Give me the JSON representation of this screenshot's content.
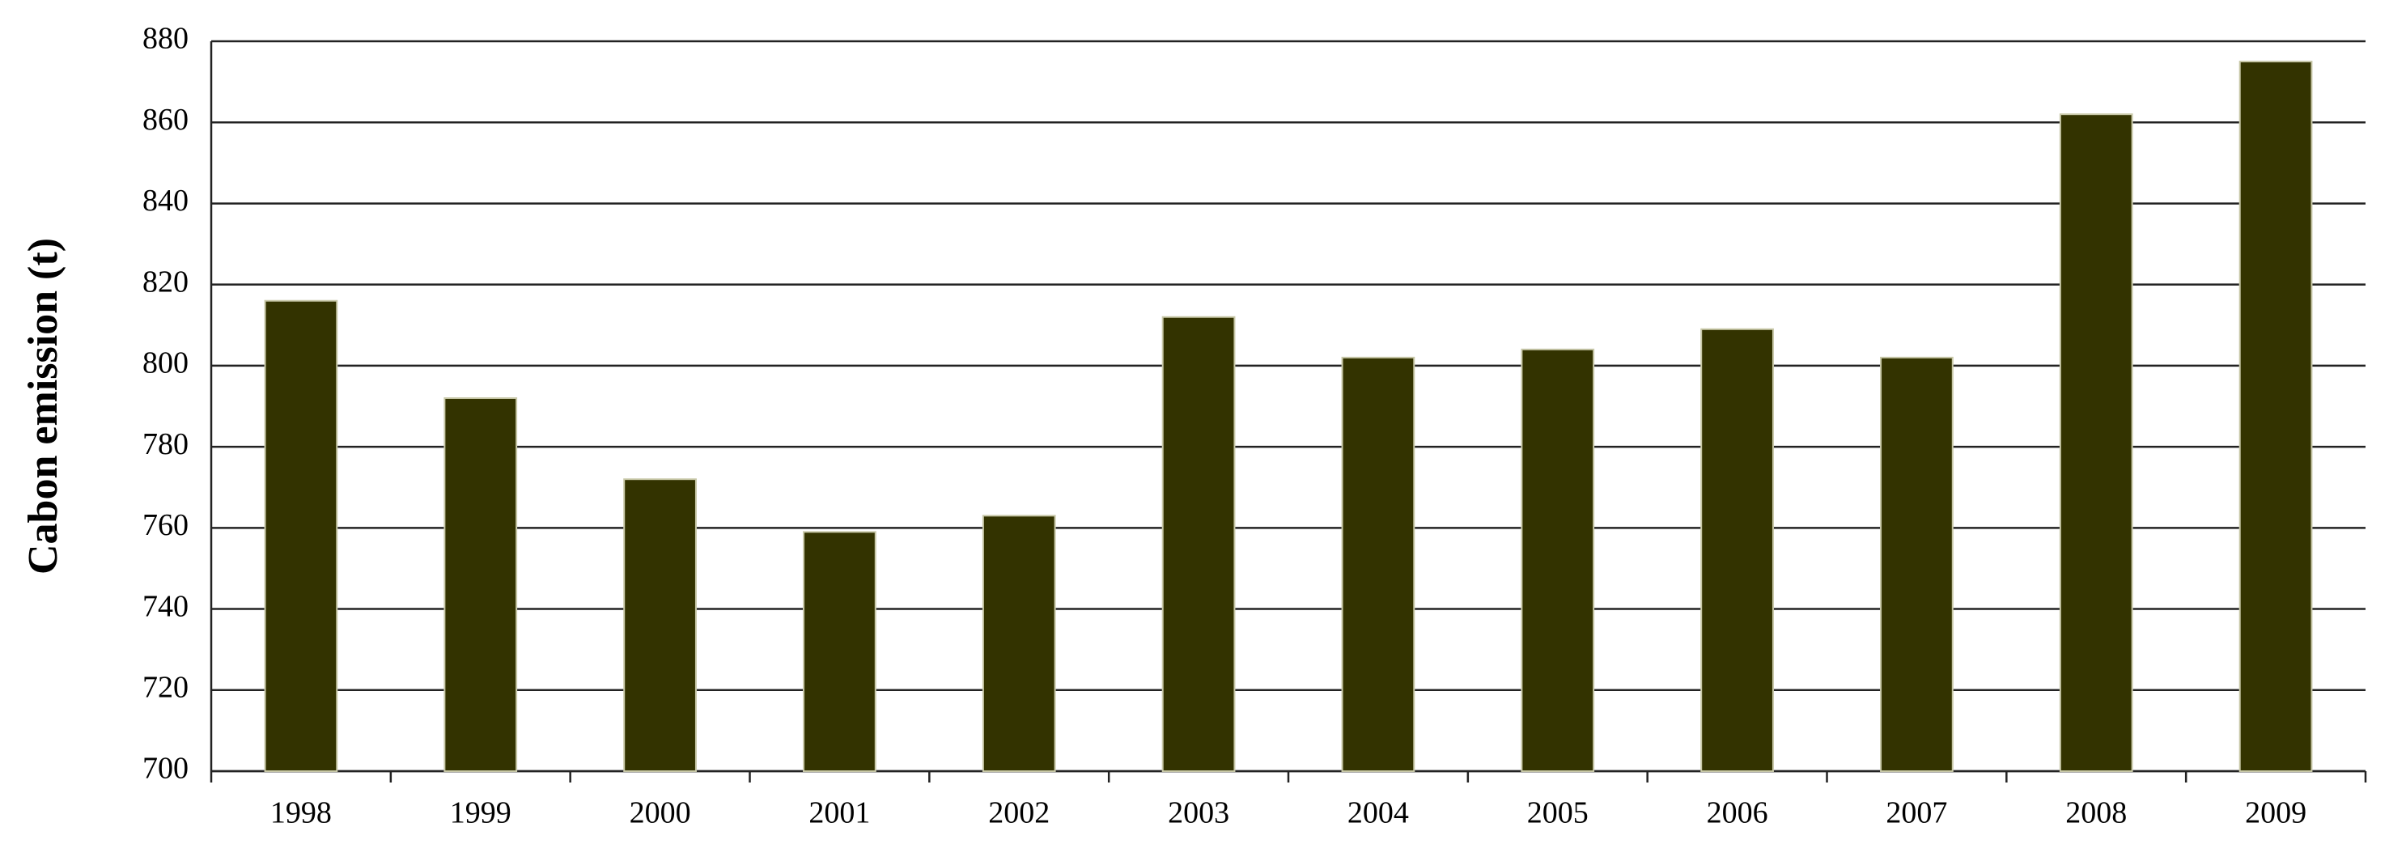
{
  "chart_data": {
    "type": "bar",
    "y_label": "Cabon emission (t)",
    "categories": [
      "1998",
      "1999",
      "2000",
      "2001",
      "2002",
      "2003",
      "2004",
      "2005",
      "2006",
      "2007",
      "2008",
      "2009"
    ],
    "values": [
      816,
      792,
      772,
      759,
      763,
      812,
      802,
      804,
      809,
      802,
      862,
      875
    ],
    "color": "#333300",
    "ylim": [
      700,
      880
    ],
    "yticks": [
      700,
      720,
      740,
      760,
      780,
      800,
      820,
      840,
      860,
      880
    ],
    "grid": true
  }
}
